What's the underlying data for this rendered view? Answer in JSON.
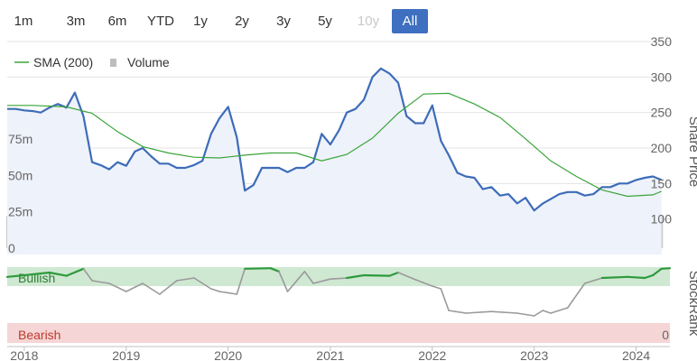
{
  "range_selector": {
    "buttons": [
      {
        "label": "1m",
        "state": "normal"
      },
      {
        "label": "3m",
        "state": "normal"
      },
      {
        "label": "6m",
        "state": "normal"
      },
      {
        "label": "YTD",
        "state": "normal"
      },
      {
        "label": "1y",
        "state": "normal"
      },
      {
        "label": "2y",
        "state": "normal"
      },
      {
        "label": "3y",
        "state": "normal"
      },
      {
        "label": "5y",
        "state": "normal"
      },
      {
        "label": "10y",
        "state": "disabled"
      },
      {
        "label": "All",
        "state": "active"
      }
    ]
  },
  "legend": {
    "sma_label": "SMA (200)",
    "volume_label": "Volume"
  },
  "colors": {
    "price": "#3d6cb9",
    "sma": "#3aa43a",
    "volume": "#c8c8c8",
    "bullish_band": "#cfe8d2",
    "bearish_band": "#f5d5d5",
    "rank_bull": "#2e9a3c",
    "rank_bear": "#9a9a9a",
    "bullish_text": "#2e7d32",
    "bearish_text": "#c0392b"
  },
  "chart_data": {
    "type": "line",
    "x_ticks": [
      "2018",
      "2019",
      "2020",
      "2021",
      "2022",
      "2023",
      "2024"
    ],
    "x_range": [
      "2017-11",
      "2024-05"
    ],
    "price_axis": {
      "title": "Share Price",
      "ticks": [
        100,
        150,
        200,
        250,
        300,
        350
      ],
      "range": [
        60,
        350
      ]
    },
    "volume_axis": {
      "ticks": [
        "0",
        "25m",
        "50m",
        "75m"
      ],
      "values": [
        0,
        25,
        50,
        75
      ],
      "unit": "m"
    },
    "rank_axis": {
      "title": "StockRank",
      "ticks": [
        0
      ],
      "range": [
        0,
        100
      ]
    },
    "series": [
      {
        "name": "Share Price",
        "role": "price",
        "x": [
          "2017-11",
          "2017-12",
          "2018-01",
          "2018-02",
          "2018-03",
          "2018-04",
          "2018-05",
          "2018-06",
          "2018-07",
          "2018-08",
          "2018-09",
          "2018-10",
          "2018-11",
          "2018-12",
          "2019-01",
          "2019-02",
          "2019-03",
          "2019-04",
          "2019-05",
          "2019-06",
          "2019-07",
          "2019-08",
          "2019-09",
          "2019-10",
          "2019-11",
          "2019-12",
          "2020-01",
          "2020-02",
          "2020-03",
          "2020-04",
          "2020-05",
          "2020-06",
          "2020-07",
          "2020-08",
          "2020-09",
          "2020-10",
          "2020-11",
          "2020-12",
          "2021-01",
          "2021-02",
          "2021-03",
          "2021-04",
          "2021-05",
          "2021-06",
          "2021-07",
          "2021-08",
          "2021-09",
          "2021-10",
          "2021-11",
          "2021-12",
          "2022-01",
          "2022-02",
          "2022-03",
          "2022-04",
          "2022-05",
          "2022-06",
          "2022-07",
          "2022-08",
          "2022-09",
          "2022-10",
          "2022-11",
          "2022-12",
          "2023-01",
          "2023-02",
          "2023-03",
          "2023-04",
          "2023-05",
          "2023-06",
          "2023-07",
          "2023-08",
          "2023-09",
          "2023-10",
          "2023-11",
          "2023-12",
          "2024-01",
          "2024-02",
          "2024-03",
          "2024-04"
        ],
        "values": [
          255,
          255,
          253,
          252,
          250,
          257,
          262,
          257,
          278,
          245,
          180,
          176,
          170,
          180,
          175,
          195,
          200,
          188,
          178,
          178,
          172,
          172,
          176,
          182,
          220,
          242,
          258,
          215,
          140,
          148,
          172,
          172,
          172,
          166,
          172,
          172,
          180,
          220,
          205,
          225,
          250,
          255,
          268,
          300,
          312,
          305,
          292,
          245,
          235,
          235,
          260,
          210,
          190,
          165,
          160,
          158,
          142,
          145,
          133,
          135,
          122,
          130,
          112,
          122,
          128,
          135,
          138,
          138,
          133,
          135,
          145,
          145,
          150,
          150,
          155,
          158,
          160,
          155
        ]
      },
      {
        "name": "SMA (200)",
        "role": "sma",
        "x": [
          "2017-11",
          "2018-02",
          "2018-06",
          "2018-09",
          "2018-12",
          "2019-03",
          "2019-06",
          "2019-09",
          "2019-12",
          "2020-03",
          "2020-06",
          "2020-09",
          "2020-12",
          "2021-03",
          "2021-06",
          "2021-09",
          "2021-12",
          "2022-03",
          "2022-06",
          "2022-09",
          "2022-12",
          "2023-03",
          "2023-06",
          "2023-09",
          "2023-12",
          "2024-03",
          "2024-04"
        ],
        "values": [
          260,
          260,
          258,
          249,
          223,
          202,
          193,
          187,
          186,
          190,
          193,
          193,
          182,
          191,
          214,
          249,
          276,
          277,
          262,
          243,
          213,
          182,
          160,
          141,
          132,
          134,
          139
        ]
      },
      {
        "name": "Volume",
        "role": "volume",
        "x": [
          "2017-11",
          "2018-01",
          "2018-04",
          "2018-09",
          "2019-04",
          "2019-10",
          "2020-03",
          "2020-07",
          "2020-12",
          "2021-05",
          "2021-10",
          "2021-11",
          "2021-12",
          "2022-03",
          "2022-06",
          "2022-09",
          "2022-12",
          "2023-02",
          "2023-03",
          "2023-04",
          "2023-06",
          "2023-09",
          "2023-12",
          "2024-04"
        ],
        "values": [
          22,
          5,
          4,
          3,
          3,
          4,
          4,
          3,
          4,
          4,
          4,
          33,
          4,
          5,
          4,
          5,
          4,
          7,
          9,
          6,
          5,
          4,
          5,
          22
        ]
      },
      {
        "name": "StockRank",
        "role": "rank",
        "x": [
          "2017-11",
          "2018-01",
          "2018-04",
          "2018-06",
          "2018-08",
          "2018-09",
          "2018-11",
          "2019-01",
          "2019-03",
          "2019-05",
          "2019-07",
          "2019-09",
          "2019-11",
          "2019-12",
          "2020-02",
          "2020-03",
          "2020-06",
          "2020-07",
          "2020-08",
          "2020-10",
          "2020-11",
          "2021-01",
          "2021-03",
          "2021-05",
          "2021-08",
          "2021-09",
          "2021-11",
          "2022-01",
          "2022-02",
          "2022-03",
          "2022-05",
          "2022-08",
          "2022-11",
          "2023-01",
          "2023-02",
          "2023-03",
          "2023-05",
          "2023-07",
          "2023-09",
          "2023-12",
          "2024-02",
          "2024-03",
          "2024-04",
          "2024-05"
        ],
        "values": [
          82,
          85,
          90,
          84,
          97,
          75,
          70,
          55,
          70,
          50,
          75,
          80,
          60,
          55,
          50,
          97,
          98,
          92,
          55,
          92,
          70,
          78,
          80,
          85,
          84,
          90,
          77,
          65,
          60,
          20,
          15,
          18,
          15,
          10,
          20,
          15,
          25,
          70,
          80,
          82,
          80,
          85,
          97,
          98
        ]
      }
    ],
    "bands": [
      {
        "label": "Bullish",
        "range": [
          80,
          100
        ]
      },
      {
        "label": "Bearish",
        "range": [
          0,
          25
        ]
      }
    ],
    "legend_position": "top-left",
    "grid": true
  }
}
